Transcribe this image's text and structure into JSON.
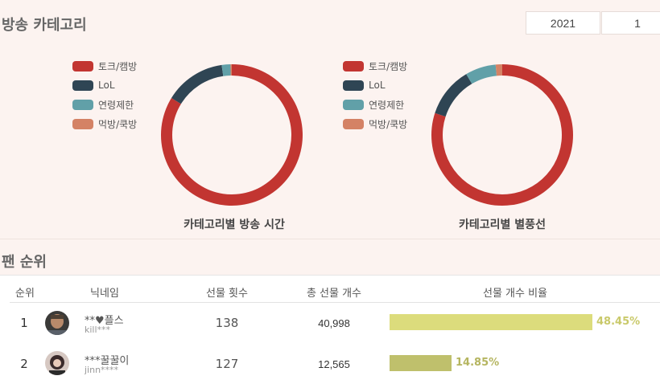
{
  "page": {
    "broadcast_title": "방송 카테고리",
    "fan_title": "팬 순위"
  },
  "filters": {
    "year": "2021",
    "month": "1"
  },
  "legend": [
    {
      "label": "토크/캠방",
      "color": "#c23531"
    },
    {
      "label": "LoL",
      "color": "#2f4554"
    },
    {
      "label": "연령제한",
      "color": "#61a0a8"
    },
    {
      "label": "먹방/쿡방",
      "color": "#d48265"
    }
  ],
  "chart_data": [
    {
      "type": "pie",
      "title": "카테고리별 방송 시간",
      "categories": [
        "토크/캠방",
        "LoL",
        "연령제한",
        "먹방/쿡방"
      ],
      "values": [
        84,
        14,
        2,
        0.3
      ],
      "colors": [
        "#c23531",
        "#2f4554",
        "#61a0a8",
        "#d48265"
      ]
    },
    {
      "type": "pie",
      "title": "카테고리별 별풍선",
      "categories": [
        "토크/캠방",
        "LoL",
        "연령제한",
        "먹방/쿡방"
      ],
      "values": [
        80,
        11.5,
        7,
        1.5
      ],
      "colors": [
        "#c23531",
        "#2f4554",
        "#61a0a8",
        "#d48265"
      ]
    }
  ],
  "fan_table": {
    "headers": [
      "순위",
      "닉네임",
      "선물 횟수",
      "총 선물 개수",
      "선물 개수 비율"
    ],
    "rows": [
      {
        "rank": "1",
        "nickname": "**♥플스",
        "user_id": "kill***",
        "gift_count": "138",
        "total_gifts": "40,998",
        "ratio": 0.4845,
        "ratio_label": "48.45%",
        "bar_color": "#dcdc7c",
        "label_color": "#c9c96a"
      },
      {
        "rank": "2",
        "nickname": "***꿀꿀이",
        "user_id": "jinn****",
        "gift_count": "127",
        "total_gifts": "12,565",
        "ratio": 0.1485,
        "ratio_label": "14.85%",
        "bar_color": "#bfc06c",
        "label_color": "#b5b560"
      }
    ]
  }
}
